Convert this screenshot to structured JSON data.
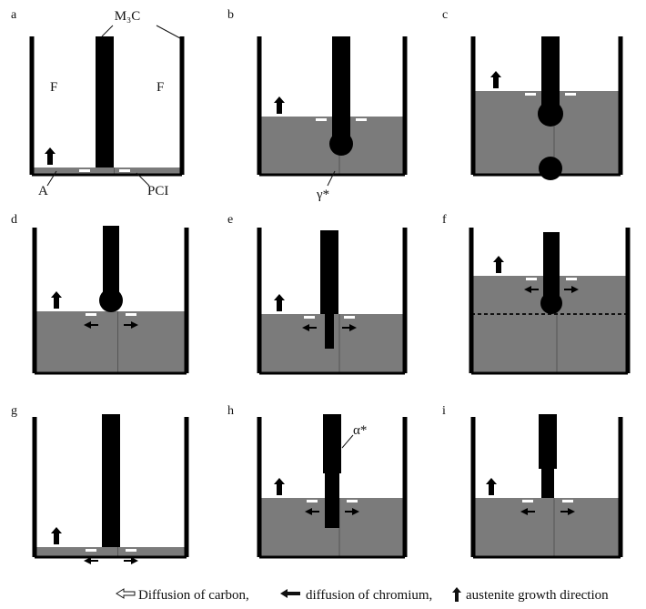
{
  "panels": [
    {
      "label": "a"
    },
    {
      "label": "b"
    },
    {
      "label": "c"
    },
    {
      "label": "d"
    },
    {
      "label": "e"
    },
    {
      "label": "f"
    },
    {
      "label": "g"
    },
    {
      "label": "h"
    },
    {
      "label": "i"
    }
  ],
  "annotations": {
    "m3c": "M₃C",
    "f_left": "F",
    "f_right": "F",
    "a": "A",
    "pci": "PCI",
    "gamma": "γ*",
    "alpha": "α*"
  },
  "legend": [
    "Diffusion of carbon,",
    "diffusion of chromium,",
    "austenite growth direction"
  ]
}
